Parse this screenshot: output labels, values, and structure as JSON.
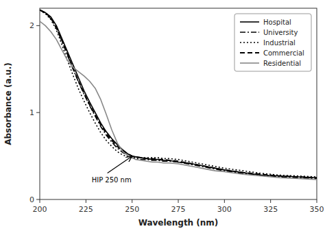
{
  "chart_data": {
    "type": "line",
    "xlabel": "Wavelength (nm)",
    "ylabel": "Absorbance (a.u.)",
    "xlim": [
      200,
      350
    ],
    "ylim": [
      0,
      2.2
    ],
    "xticks": [
      200,
      225,
      250,
      275,
      300,
      325,
      350
    ],
    "yticks": [
      0,
      1,
      2
    ],
    "grid": false,
    "legend": "upper right",
    "annotation": {
      "text": "HIP 250 nm",
      "x": 250,
      "y": 0.5
    },
    "x": [
      200,
      203,
      206,
      209,
      212,
      215,
      218,
      221,
      224,
      227,
      230,
      233,
      236,
      239,
      242,
      245,
      248,
      250,
      252,
      255,
      258,
      261,
      264,
      267,
      270,
      275,
      280,
      285,
      290,
      295,
      300,
      310,
      320,
      330,
      340,
      350
    ],
    "series": [
      {
        "name": "Hospital",
        "color": "#000000",
        "line_style": "solid",
        "values": [
          2.18,
          2.15,
          2.1,
          2.0,
          1.85,
          1.7,
          1.55,
          1.4,
          1.25,
          1.12,
          1.0,
          0.88,
          0.78,
          0.7,
          0.63,
          0.57,
          0.52,
          0.5,
          0.49,
          0.48,
          0.47,
          0.46,
          0.46,
          0.45,
          0.45,
          0.43,
          0.42,
          0.4,
          0.38,
          0.36,
          0.34,
          0.31,
          0.28,
          0.27,
          0.26,
          0.25
        ]
      },
      {
        "name": "University",
        "color": "#000000",
        "line_style": "dashdot",
        "values": [
          2.18,
          2.14,
          2.08,
          1.97,
          1.82,
          1.66,
          1.5,
          1.35,
          1.21,
          1.08,
          0.96,
          0.84,
          0.74,
          0.66,
          0.59,
          0.54,
          0.5,
          0.48,
          0.47,
          0.46,
          0.46,
          0.45,
          0.45,
          0.44,
          0.44,
          0.43,
          0.41,
          0.39,
          0.37,
          0.35,
          0.33,
          0.3,
          0.28,
          0.26,
          0.25,
          0.24
        ]
      },
      {
        "name": "Industrial",
        "color": "#000000",
        "line_style": "dotted",
        "values": [
          2.18,
          2.14,
          2.07,
          1.95,
          1.78,
          1.6,
          1.43,
          1.27,
          1.13,
          1.0,
          0.88,
          0.77,
          0.68,
          0.61,
          0.55,
          0.51,
          0.49,
          0.48,
          0.48,
          0.48,
          0.48,
          0.48,
          0.48,
          0.47,
          0.47,
          0.46,
          0.44,
          0.42,
          0.4,
          0.38,
          0.36,
          0.33,
          0.3,
          0.28,
          0.27,
          0.26
        ]
      },
      {
        "name": "Commercial",
        "color": "#000000",
        "line_style": "dashed",
        "values": [
          2.18,
          2.15,
          2.09,
          1.98,
          1.83,
          1.67,
          1.51,
          1.36,
          1.22,
          1.09,
          0.97,
          0.86,
          0.76,
          0.68,
          0.61,
          0.56,
          0.52,
          0.5,
          0.49,
          0.48,
          0.47,
          0.47,
          0.46,
          0.46,
          0.45,
          0.44,
          0.42,
          0.4,
          0.38,
          0.36,
          0.34,
          0.31,
          0.29,
          0.27,
          0.26,
          0.25
        ]
      },
      {
        "name": "Residential",
        "color": "#888888",
        "line_style": "solid",
        "values": [
          2.05,
          2.0,
          1.93,
          1.84,
          1.72,
          1.6,
          1.52,
          1.47,
          1.42,
          1.36,
          1.28,
          1.15,
          0.98,
          0.8,
          0.65,
          0.55,
          0.5,
          0.48,
          0.46,
          0.45,
          0.44,
          0.43,
          0.43,
          0.42,
          0.42,
          0.41,
          0.39,
          0.37,
          0.35,
          0.33,
          0.32,
          0.29,
          0.27,
          0.25,
          0.24,
          0.23
        ]
      }
    ]
  }
}
